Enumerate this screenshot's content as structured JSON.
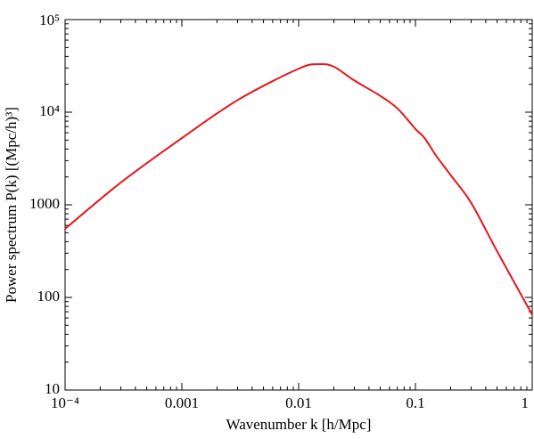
{
  "chart_data": {
    "type": "line",
    "x_label": "Wavenumber  k  [h/Mpc]",
    "y_label": "Power spectrum  P(k)  [(Mpc/h)³]",
    "x_scale": "log",
    "y_scale": "log",
    "x": [
      0.0001,
      0.0003,
      0.001,
      0.003,
      0.01,
      0.015,
      0.02,
      0.03,
      0.05,
      0.07,
      0.1,
      0.12,
      0.15,
      0.2,
      0.3,
      0.5,
      1
    ],
    "series": [
      {
        "color": "#e8141c",
        "values": [
          550,
          1740,
          5250,
          13500,
          29500,
          33000,
          31000,
          22000,
          15000,
          11000,
          6600,
          5250,
          3400,
          2100,
          1050,
          316,
          65
        ]
      }
    ],
    "xlim": [
      0.0001,
      1
    ],
    "ylim": [
      10,
      100000
    ],
    "xticks": [
      {
        "value": 0.0001,
        "label": "10⁻⁴"
      },
      0.001,
      0.01,
      0.1,
      1
    ],
    "yticks": [
      10,
      100,
      1000,
      {
        "value": 10000,
        "label": "10⁴"
      },
      {
        "value": 100000,
        "label": "10⁵"
      }
    ]
  }
}
